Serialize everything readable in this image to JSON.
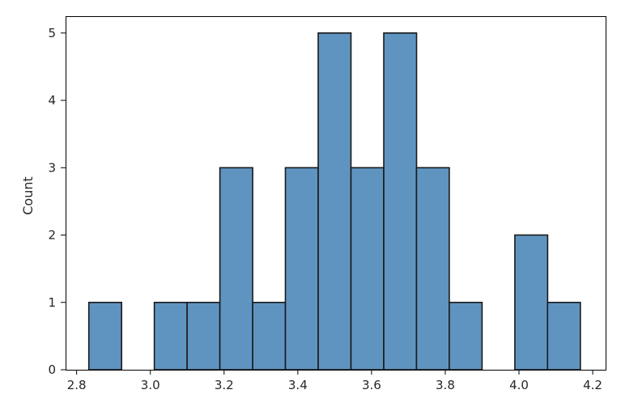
{
  "chart_data": {
    "type": "bar",
    "subtype": "histogram",
    "title": "",
    "xlabel": "",
    "ylabel": "Count",
    "bin_start": 2.833,
    "bin_width": 0.0889,
    "counts": [
      1,
      0,
      1,
      1,
      3,
      1,
      3,
      5,
      3,
      5,
      3,
      1,
      0,
      2,
      1
    ],
    "xlim": [
      2.77,
      4.235
    ],
    "ylim": [
      0,
      5.25
    ],
    "x_ticks": [
      2.8,
      3.0,
      3.2,
      3.4,
      3.6,
      3.8,
      4.0,
      4.2
    ],
    "x_tick_labels": [
      "2.8",
      "3.0",
      "3.2",
      "3.4",
      "3.6",
      "3.8",
      "4.0",
      "4.2"
    ],
    "y_ticks": [
      0,
      1,
      2,
      3,
      4,
      5
    ],
    "y_tick_labels": [
      "0",
      "1",
      "2",
      "3",
      "4",
      "5"
    ],
    "grid": false,
    "legend": "none",
    "bar_color": "#5f94c0",
    "edge_color": "#1a1a1a"
  }
}
